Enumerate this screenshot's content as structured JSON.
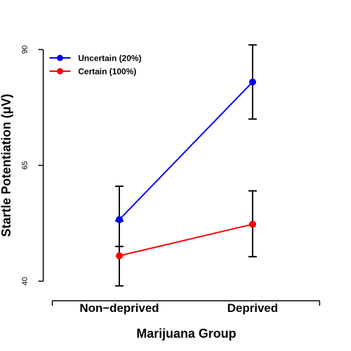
{
  "chart_data": {
    "type": "line",
    "title": "",
    "xlabel": "Marijuana Group",
    "ylabel": "Startle Potentiation (μV)",
    "categories": [
      "Non−deprived",
      "Deprived"
    ],
    "ylim": [
      40,
      90
    ],
    "yticks": [
      40,
      65,
      90
    ],
    "grid": false,
    "legend_position": "top-left",
    "series": [
      {
        "name": "Uncertain (20%)",
        "color": "#0000ff",
        "values": [
          53.3,
          83.0
        ],
        "error_low": [
          47.5,
          75.0
        ],
        "error_high": [
          60.5,
          91.0
        ]
      },
      {
        "name": "Certain (100%)",
        "color": "#ff0000",
        "values": [
          45.5,
          52.3
        ],
        "error_low": [
          39.0,
          45.3
        ],
        "error_high": [
          53.0,
          59.5
        ]
      }
    ]
  }
}
